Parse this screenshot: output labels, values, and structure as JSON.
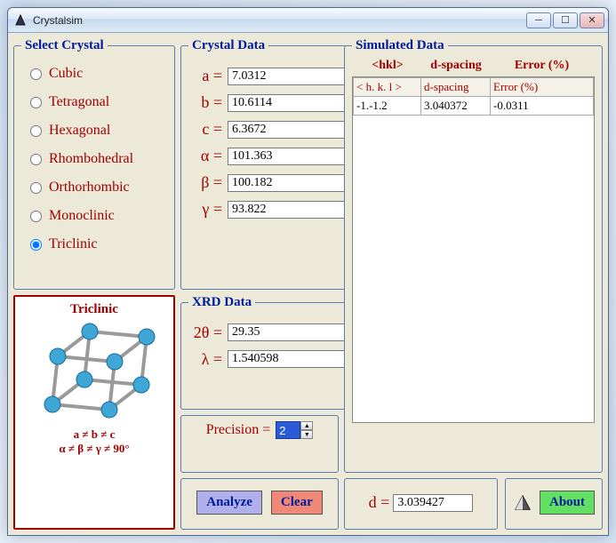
{
  "window": {
    "title": "Crystalsim"
  },
  "select_crystal": {
    "legend": "Select Crystal",
    "options": [
      "Cubic",
      "Tetragonal",
      "Hexagonal",
      "Rhombohedral",
      "Orthorhombic",
      "Monoclinic",
      "Triclinic"
    ],
    "selected_index": 6
  },
  "crystal_card": {
    "title": "Triclinic",
    "relation_line1": "a ≠ b ≠ c",
    "relation_line2": "α ≠ β ≠ γ ≠ 90°",
    "node_color": "#3fa7d6",
    "edge_color": "#9a9a9a"
  },
  "crystal_data": {
    "legend": "Crystal Data",
    "params": [
      {
        "label": "a =",
        "value": "7.0312"
      },
      {
        "label": "b =",
        "value": "10.6114"
      },
      {
        "label": "c =",
        "value": "6.3672"
      },
      {
        "label": "α =",
        "value": "101.363"
      },
      {
        "label": "β =",
        "value": "100.182"
      },
      {
        "label": "γ =",
        "value": "93.822"
      }
    ]
  },
  "xrd_data": {
    "legend": "XRD Data",
    "params": [
      {
        "label": "2θ =",
        "value": "29.35"
      },
      {
        "label": "λ =",
        "value": "1.540598"
      }
    ]
  },
  "precision": {
    "label": "Precision =",
    "value": "2"
  },
  "buttons": {
    "analyze": "Analyze",
    "clear": "Clear",
    "about": "About"
  },
  "simulated": {
    "legend": "Simulated Data",
    "top_headers": [
      "<hkl>",
      "d-spacing",
      "Error (%)"
    ],
    "col_headers": [
      "< h. k. l >",
      "d-spacing",
      "Error (%)"
    ],
    "rows": [
      {
        "hkl": "-1.-1.2",
        "d": "3.040372",
        "err": "-0.0311"
      }
    ]
  },
  "d_result": {
    "label": "d =",
    "value": "3.039427"
  },
  "colors": {
    "accent_red": "#a00000",
    "accent_blue": "#001a9c",
    "panel_bg": "#ece9d8",
    "analyze_bg": "#b0b0ec",
    "clear_bg": "#f08878",
    "about_bg": "#63e063"
  }
}
